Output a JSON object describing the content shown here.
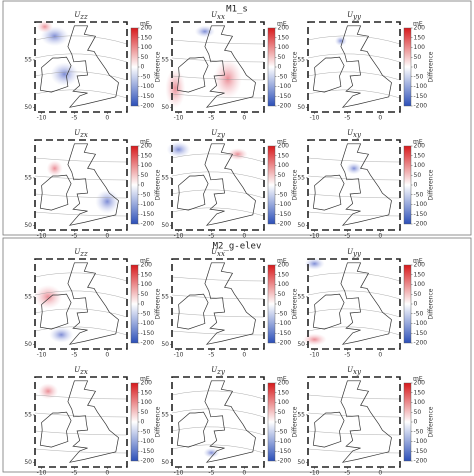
{
  "figure": {
    "sections": [
      {
        "title": "M1_s",
        "panels": [
          {
            "symbol": "U",
            "sub": "zz"
          },
          {
            "symbol": "U",
            "sub": "xx"
          },
          {
            "symbol": "U",
            "sub": "yy"
          },
          {
            "symbol": "U",
            "sub": "zx"
          },
          {
            "symbol": "U",
            "sub": "zy"
          },
          {
            "symbol": "U",
            "sub": "xy"
          }
        ]
      },
      {
        "title": "M2_g-elev",
        "panels": [
          {
            "symbol": "U",
            "sub": "zz"
          },
          {
            "symbol": "U",
            "sub": "xx"
          },
          {
            "symbol": "U",
            "sub": "yy"
          },
          {
            "symbol": "U",
            "sub": "zx"
          },
          {
            "symbol": "U",
            "sub": "zy"
          },
          {
            "symbol": "U",
            "sub": "xy"
          }
        ]
      }
    ],
    "xlim": [
      -11,
      3
    ],
    "xticks": [
      -10,
      -5,
      0
    ],
    "ylim": [
      49.5,
      59
    ],
    "yticks": [
      50,
      55
    ],
    "colorbar": {
      "unit": "mE",
      "label": "Difference",
      "lim": [
        -200,
        200
      ],
      "ticks": [
        200,
        150,
        100,
        50,
        0,
        -50,
        -100,
        -150,
        -200
      ]
    }
  }
}
